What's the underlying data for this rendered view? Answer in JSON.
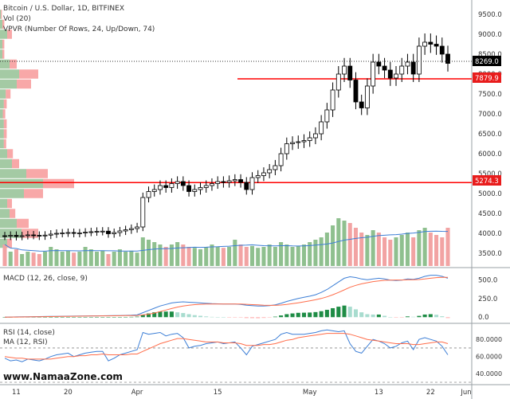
{
  "header": {
    "title": "Bitcoin / U.S. Dollar, 1D, BITFINEX",
    "volume_label": "Vol (20)",
    "vpvr_label": "VPVR (Number Of Rows, 24, Up/Down, 74)"
  },
  "watermark": "www.NamaaZone.com",
  "colors": {
    "up": "#ffffff",
    "down": "#000000",
    "vol_up": "#8fc08f",
    "vol_down": "#f2a3a3",
    "vol_ma": "#3d7fd6",
    "level_line": "#ff0000",
    "macd_line": "#3d7fd6",
    "signal_line": "#ff6d4a",
    "hist_up": "#1e8c45",
    "hist_up_fade": "#a8dccf",
    "hist_down": "#ffb3b3",
    "rsi_line": "#3d7fd6",
    "rsi_ma": "#ff6d4a",
    "vpvr_up": "#5a9e5a",
    "vpvr_down": "#f26060"
  },
  "price_axis": {
    "ticks": [
      "9500.0",
      "9000.0",
      "8500.0",
      "8000.0",
      "7500.0",
      "7000.0",
      "6500.0",
      "6000.0",
      "5500.0",
      "5000.0",
      "4500.0",
      "4000.0",
      "3500.0"
    ]
  },
  "price_labels": {
    "last": "8269.0",
    "level_upper": "7879.9",
    "level_lower": "5274.3"
  },
  "macd": {
    "label": "MACD (12, 26, close, 9)",
    "ticks": [
      "500.0",
      "250.0",
      "0.0"
    ]
  },
  "rsi": {
    "label_line1": "RSI (14, close)",
    "label_line2": "MA (12, RSI)",
    "ticks": [
      "80.0000",
      "60.0000",
      "40.0000"
    ]
  },
  "time_axis": {
    "ticks": [
      "11",
      "20",
      "Apr",
      "15",
      "May",
      "13",
      "22",
      "Jun"
    ]
  },
  "chart_data": {
    "type": "candlestick",
    "title": "Bitcoin / U.S. Dollar, 1D, BITFINEX",
    "ylim": [
      3300,
      9700
    ],
    "date_range": [
      "2019-03-09",
      "2019-05-30"
    ],
    "level_lines": [
      7879.9,
      5274.3
    ],
    "last_price": 8269.0,
    "close": [
      3930,
      3950,
      3920,
      3940,
      3960,
      3950,
      3930,
      3955,
      3980,
      4000,
      4010,
      4020,
      4000,
      4010,
      4030,
      4040,
      4050,
      4055,
      3990,
      4020,
      4060,
      4090,
      4120,
      4160,
      4900,
      5050,
      5100,
      5200,
      5150,
      5250,
      5300,
      5200,
      5050,
      5100,
      5150,
      5200,
      5250,
      5300,
      5280,
      5320,
      5350,
      5280,
      5100,
      5400,
      5450,
      5520,
      5600,
      5700,
      6000,
      6250,
      6280,
      6300,
      6330,
      6400,
      6500,
      6800,
      7100,
      7600,
      8000,
      8200,
      7850,
      7300,
      7150,
      7700,
      8300,
      8200,
      8100,
      7900,
      8000,
      8200,
      8300,
      8000,
      8700,
      8800,
      8750,
      8700,
      8500,
      8269
    ],
    "open": [
      3940,
      3930,
      3950,
      3925,
      3945,
      3960,
      3950,
      3935,
      3955,
      3985,
      4000,
      4010,
      4020,
      4000,
      4010,
      4030,
      4040,
      4050,
      4055,
      3990,
      4020,
      4060,
      4090,
      4120,
      4160,
      4900,
      5050,
      5100,
      5200,
      5150,
      5250,
      5300,
      5200,
      5050,
      5100,
      5150,
      5200,
      5250,
      5300,
      5280,
      5320,
      5350,
      5280,
      5100,
      5400,
      5450,
      5520,
      5600,
      5700,
      6000,
      6250,
      6280,
      6300,
      6330,
      6400,
      6500,
      6800,
      7100,
      7600,
      8000,
      8200,
      7850,
      7300,
      7150,
      7700,
      8300,
      8200,
      8100,
      7900,
      8000,
      8200,
      8300,
      8000,
      8700,
      8800,
      8750,
      8700,
      8500
    ],
    "volume": [
      0.45,
      0.3,
      0.35,
      0.25,
      0.3,
      0.28,
      0.25,
      0.3,
      0.4,
      0.35,
      0.3,
      0.32,
      0.28,
      0.3,
      0.4,
      0.35,
      0.3,
      0.32,
      0.25,
      0.3,
      0.35,
      0.3,
      0.32,
      0.28,
      0.6,
      0.55,
      0.5,
      0.45,
      0.4,
      0.45,
      0.5,
      0.45,
      0.4,
      0.38,
      0.35,
      0.4,
      0.45,
      0.4,
      0.38,
      0.4,
      0.55,
      0.45,
      0.4,
      0.42,
      0.38,
      0.4,
      0.45,
      0.4,
      0.5,
      0.45,
      0.4,
      0.42,
      0.45,
      0.5,
      0.55,
      0.6,
      0.7,
      0.85,
      1.0,
      0.95,
      0.9,
      0.8,
      0.7,
      0.65,
      0.75,
      0.7,
      0.6,
      0.55,
      0.6,
      0.65,
      0.7,
      0.6,
      0.75,
      0.8,
      0.7,
      0.65,
      0.6,
      0.8
    ],
    "macd_ylim": [
      -40,
      620
    ],
    "macd": [
      0,
      2,
      4,
      5,
      6,
      7,
      8,
      9,
      10,
      11,
      12,
      13,
      14,
      15,
      16,
      17,
      18,
      19,
      20,
      21,
      22,
      24,
      26,
      30,
      60,
      90,
      120,
      150,
      170,
      190,
      200,
      205,
      200,
      195,
      190,
      185,
      180,
      178,
      176,
      175,
      175,
      170,
      160,
      155,
      150,
      150,
      155,
      165,
      185,
      210,
      230,
      250,
      265,
      280,
      300,
      330,
      370,
      420,
      470,
      520,
      540,
      530,
      510,
      500,
      510,
      520,
      510,
      495,
      490,
      495,
      510,
      505,
      520,
      545,
      560,
      560,
      545,
      520
    ],
    "signal": [
      0,
      1,
      2,
      3,
      4,
      5,
      6,
      7,
      8,
      9,
      10,
      11,
      12,
      13,
      14,
      15,
      16,
      17,
      18,
      19,
      20,
      21,
      22,
      23,
      30,
      40,
      55,
      75,
      95,
      115,
      135,
      150,
      160,
      168,
      172,
      175,
      176,
      176,
      176,
      176,
      176,
      175,
      172,
      168,
      164,
      160,
      158,
      158,
      162,
      170,
      180,
      192,
      205,
      218,
      232,
      250,
      272,
      300,
      330,
      365,
      400,
      425,
      445,
      460,
      475,
      485,
      492,
      495,
      496,
      497,
      500,
      500,
      503,
      510,
      520,
      528,
      533,
      532
    ],
    "rsi_ylim": [
      30,
      95
    ],
    "rsi": [
      58,
      55,
      56,
      54,
      57,
      56,
      55,
      57,
      60,
      62,
      63,
      64,
      60,
      62,
      64,
      65,
      66,
      66,
      55,
      58,
      62,
      64,
      66,
      68,
      88,
      86,
      87,
      88,
      84,
      86,
      87,
      82,
      70,
      72,
      73,
      75,
      76,
      77,
      75,
      76,
      77,
      70,
      62,
      72,
      74,
      76,
      78,
      80,
      86,
      88,
      86,
      86,
      86,
      87,
      88,
      90,
      91,
      90,
      89,
      90,
      75,
      66,
      64,
      72,
      80,
      78,
      75,
      70,
      72,
      76,
      78,
      68,
      80,
      82,
      80,
      78,
      72,
      62
    ],
    "rsi_ma": [
      60,
      59,
      58,
      58,
      57,
      57,
      57,
      57,
      57,
      58,
      59,
      60,
      60,
      61,
      61,
      62,
      62,
      63,
      62,
      62,
      62,
      62,
      63,
      63,
      66,
      69,
      72,
      75,
      77,
      79,
      81,
      81,
      80,
      79,
      78,
      77,
      77,
      77,
      76,
      76,
      76,
      75,
      73,
      73,
      73,
      74,
      74,
      75,
      77,
      79,
      80,
      82,
      83,
      84,
      85,
      86,
      87,
      87,
      87,
      87,
      86,
      84,
      82,
      80,
      79,
      78,
      77,
      76,
      75,
      75,
      75,
      74,
      74,
      75,
      76,
      77,
      77,
      75
    ],
    "vpvr": {
      "price_rows": [
        3750,
        4000,
        4250,
        4500,
        4750,
        5000,
        5250,
        5500,
        5750,
        6000,
        6250,
        6500,
        6750,
        7000,
        7250,
        7500,
        7750,
        8000,
        8250,
        8500,
        8750,
        9000,
        9250,
        9500
      ],
      "up_vol": [
        0.15,
        0.45,
        0.35,
        0.2,
        0.15,
        0.5,
        0.9,
        0.55,
        0.25,
        0.15,
        0.08,
        0.08,
        0.08,
        0.06,
        0.08,
        0.12,
        0.35,
        0.4,
        0.2,
        0.05,
        0.05,
        0.15,
        0.05,
        0.02
      ],
      "down_vol": [
        0.1,
        0.35,
        0.25,
        0.12,
        0.1,
        0.4,
        0.65,
        0.45,
        0.15,
        0.12,
        0.05,
        0.06,
        0.06,
        0.05,
        0.06,
        0.1,
        0.3,
        0.4,
        0.15,
        0.04,
        0.04,
        0.1,
        0.04,
        0.02
      ]
    }
  }
}
